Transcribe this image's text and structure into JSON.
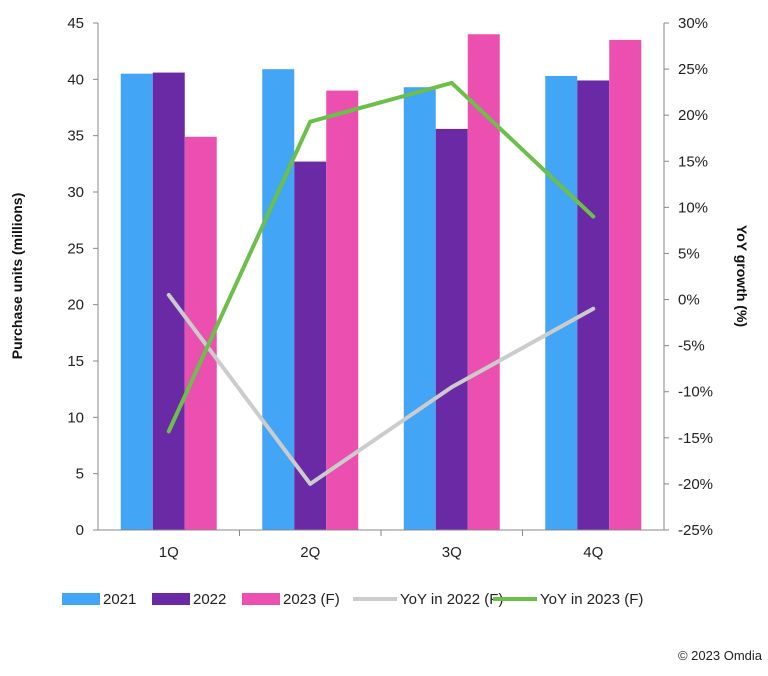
{
  "chart_data": {
    "type": "bar",
    "categories": [
      "1Q",
      "2Q",
      "3Q",
      "4Q"
    ],
    "series": [
      {
        "name": "2021",
        "kind": "bar",
        "axis": "left",
        "color": "#42a5f5",
        "values": [
          40.5,
          40.9,
          39.3,
          40.3
        ]
      },
      {
        "name": "2022",
        "kind": "bar",
        "axis": "left",
        "color": "#6a2aa6",
        "values": [
          40.6,
          32.7,
          35.6,
          39.9
        ]
      },
      {
        "name": "2023 (F)",
        "kind": "bar",
        "axis": "left",
        "color": "#eb4fb0",
        "values": [
          34.9,
          39.0,
          44.0,
          43.5
        ]
      },
      {
        "name": "YoY in 2022 (F)",
        "kind": "line",
        "axis": "right",
        "color": "#cccccc",
        "values": [
          0.5,
          -20.0,
          -9.5,
          -1.0
        ]
      },
      {
        "name": "YoY in 2023 (F)",
        "kind": "line",
        "axis": "right",
        "color": "#6cc04a",
        "values": [
          -14.3,
          19.3,
          23.5,
          9.0
        ]
      }
    ],
    "ylabel": "Purchase units (millions)",
    "y2label": "YoY growth (%)",
    "ylim": [
      0,
      45
    ],
    "y2lim": [
      -25,
      30
    ],
    "yticks": [
      "0",
      "5",
      "10",
      "15",
      "20",
      "25",
      "30",
      "35",
      "40",
      "45"
    ],
    "y2ticks": [
      "-25%",
      "-20%",
      "-15%",
      "-10%",
      "-5%",
      "0%",
      "5%",
      "10%",
      "15%",
      "20%",
      "25%",
      "30%"
    ],
    "grid": false,
    "legend_position": "bottom"
  },
  "copyright": "© 2023 Omdia"
}
